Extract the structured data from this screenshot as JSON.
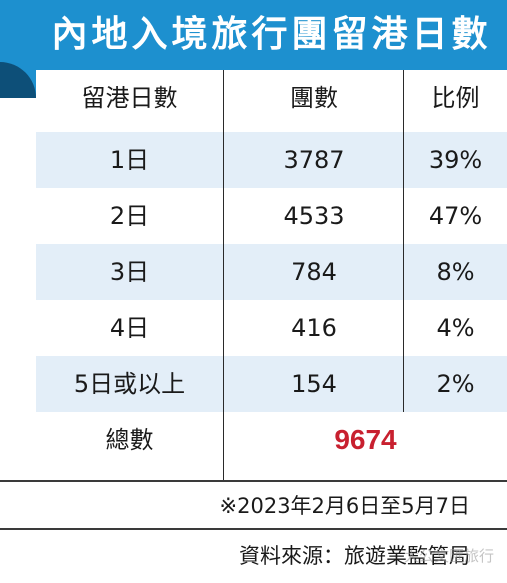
{
  "title": "內地入境旅行團留港日數",
  "colors": {
    "header_bg": "#1d90cf",
    "header_dark": "#0d4f78",
    "row_shade": "#e3eef8",
    "total_red": "#c8202f"
  },
  "table": {
    "headers": [
      "留港日數",
      "團數",
      "比例"
    ],
    "rows": [
      {
        "days": "1日",
        "groups": "3787",
        "ratio": "39%"
      },
      {
        "days": "2日",
        "groups": "4533",
        "ratio": "47%"
      },
      {
        "days": "3日",
        "groups": "784",
        "ratio": "8%"
      },
      {
        "days": "4日",
        "groups": "416",
        "ratio": "4%"
      },
      {
        "days": "5日或以上",
        "groups": "154",
        "ratio": "2%"
      }
    ],
    "total_label": "總數",
    "total_value": "9674"
  },
  "date_note": "※2023年2月6日至5月7日",
  "source": "資料來源：旅遊業監管局",
  "watermark": "大公文匯旅行"
}
